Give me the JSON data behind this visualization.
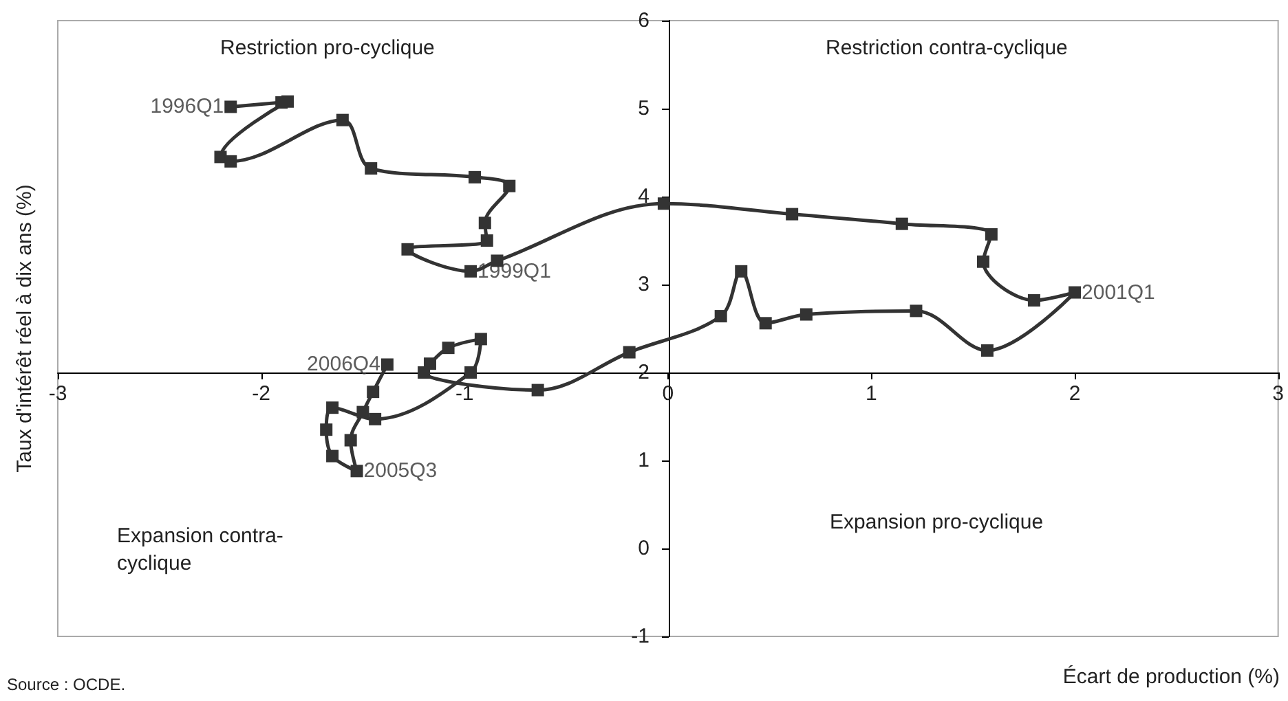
{
  "chart_data": {
    "type": "line",
    "xlabel": "Écart de production (%)",
    "ylabel": "Taux d'intérêt réel à dix ans (%)",
    "x": [
      -2.15,
      -1.9,
      -1.87,
      -2.2,
      -2.15,
      -1.6,
      -1.46,
      -0.95,
      -0.78,
      -0.9,
      -0.89,
      -1.28,
      -0.97,
      -0.84,
      -0.02,
      0.61,
      1.15,
      1.59,
      1.55,
      1.8,
      2.0,
      1.57,
      1.22,
      0.68,
      0.48,
      0.36,
      0.26,
      -0.19,
      -0.64,
      -1.2,
      -1.17,
      -1.08,
      -0.92,
      -0.97,
      -1.44,
      -1.65,
      -1.68,
      -1.65,
      -1.53,
      -1.56,
      -1.5,
      -1.45,
      -1.38
    ],
    "values": [
      5.02,
      5.07,
      5.08,
      4.45,
      4.4,
      4.87,
      4.32,
      4.22,
      4.12,
      3.7,
      3.5,
      3.4,
      3.15,
      3.27,
      3.92,
      3.8,
      3.69,
      3.57,
      3.26,
      2.82,
      2.91,
      2.25,
      2.7,
      2.66,
      2.56,
      3.15,
      2.64,
      2.23,
      1.8,
      2.0,
      2.1,
      2.28,
      2.38,
      2.0,
      1.47,
      1.6,
      1.35,
      1.05,
      0.88,
      1.23,
      1.55,
      1.78,
      2.09
    ],
    "color": "#333333",
    "marker": "square",
    "line_style": "solid",
    "grid": false,
    "xlim": [
      -3,
      3
    ],
    "xticks": [
      -3,
      -2,
      -1,
      0,
      1,
      2,
      3
    ],
    "ylim": [
      -1,
      6
    ],
    "yticks": [
      -1,
      0,
      1,
      2,
      3,
      4,
      5,
      6
    ],
    "annotations": [
      "Restriction pro-cyclique",
      "Restriction contra-cyclique",
      "Expansion contra-\ncyclique",
      "Expansion pro-cyclique",
      "Source : OCDE.",
      {
        "text": "1996Q1",
        "x": -2.15,
        "y": 5.02
      },
      {
        "text": "1999Q1",
        "x": -0.97,
        "y": 3.15
      },
      {
        "text": "2001Q1",
        "x": 2.0,
        "y": 2.91
      },
      {
        "text": "2005Q3",
        "x": -1.53,
        "y": 0.88
      },
      {
        "text": "2006Q4",
        "x": -1.38,
        "y": 2.09
      }
    ]
  }
}
